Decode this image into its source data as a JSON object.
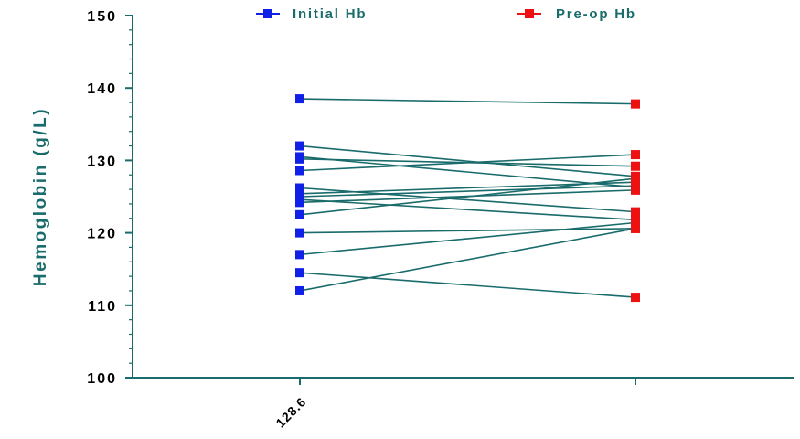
{
  "chart_data": {
    "type": "line",
    "ylabel": "Hemoglobin (g/L)",
    "ylim": [
      100,
      150
    ],
    "yticks": [
      "100",
      "110",
      "120",
      "130",
      "140",
      "150"
    ],
    "xtick_labels": [
      "128.6",
      ""
    ],
    "groups": [
      "Initial Hb",
      "Pre-op Hb"
    ],
    "legend": [
      {
        "name": "Initial Hb",
        "color": "#1020e6"
      },
      {
        "name": "Pre-op Hb",
        "color": "#ee1111"
      }
    ],
    "legend_position": "top",
    "line_color": "#1a6b6b",
    "pairs": [
      [
        138.5,
        137.8
      ],
      [
        132.0,
        127.8
      ],
      [
        130.5,
        126.3
      ],
      [
        130.2,
        129.2
      ],
      [
        128.6,
        130.8
      ],
      [
        126.2,
        122.9
      ],
      [
        125.4,
        127.0
      ],
      [
        125.0,
        126.5
      ],
      [
        124.6,
        121.8
      ],
      [
        124.2,
        125.9
      ],
      [
        122.5,
        127.5
      ],
      [
        120.0,
        120.6
      ],
      [
        117.0,
        121.4
      ],
      [
        114.5,
        111.1
      ],
      [
        112.0,
        120.6
      ]
    ]
  }
}
